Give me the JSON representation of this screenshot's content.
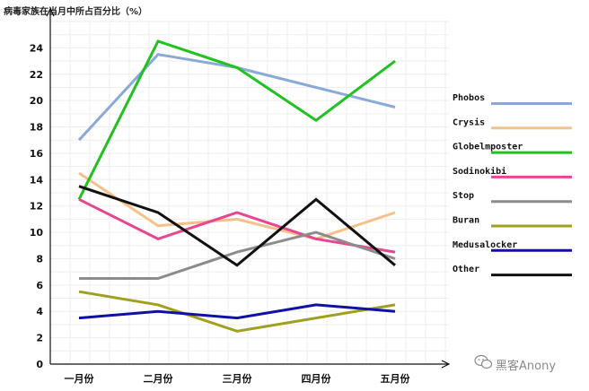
{
  "chart_data": {
    "type": "line",
    "title": "",
    "ylabel": "病毒家族在当月中所占百分比（%）",
    "xlabel": "",
    "categories": [
      "一月份",
      "二月份",
      "三月份",
      "四月份",
      "五月份"
    ],
    "ylim": [
      0,
      26
    ],
    "yticks": [
      0,
      2,
      4,
      6,
      8,
      10,
      12,
      14,
      16,
      18,
      20,
      22,
      24
    ],
    "grid": true,
    "legend_position": "right",
    "series": [
      {
        "name": "Phobos",
        "color": "#8aa9d6",
        "values": [
          17,
          23.5,
          22.5,
          21,
          19.5
        ]
      },
      {
        "name": "Crysis",
        "color": "#f5c08a",
        "values": [
          14.5,
          10.5,
          11,
          9.5,
          11.5
        ]
      },
      {
        "name": "Globelmposter",
        "color": "#1fc21f",
        "values": [
          12.5,
          24.5,
          22.5,
          18.5,
          23
        ]
      },
      {
        "name": "Sodinokibi",
        "color": "#e8468e",
        "values": [
          12.5,
          9.5,
          11.5,
          9.5,
          8.5
        ]
      },
      {
        "name": "Stop",
        "color": "#8c8c8c",
        "values": [
          6.5,
          6.5,
          8.5,
          10,
          8
        ]
      },
      {
        "name": "Buran",
        "color": "#a0a020",
        "values": [
          5.5,
          4.5,
          2.5,
          3.5,
          4.5
        ]
      },
      {
        "name": "Medusalocker",
        "color": "#1010a8",
        "values": [
          3.5,
          4,
          3.5,
          4.5,
          4
        ]
      },
      {
        "name": "Other",
        "color": "#111111",
        "values": [
          13.5,
          11.5,
          7.5,
          12.5,
          7.5
        ]
      }
    ]
  },
  "watermark": {
    "text": "黑客Anony"
  }
}
